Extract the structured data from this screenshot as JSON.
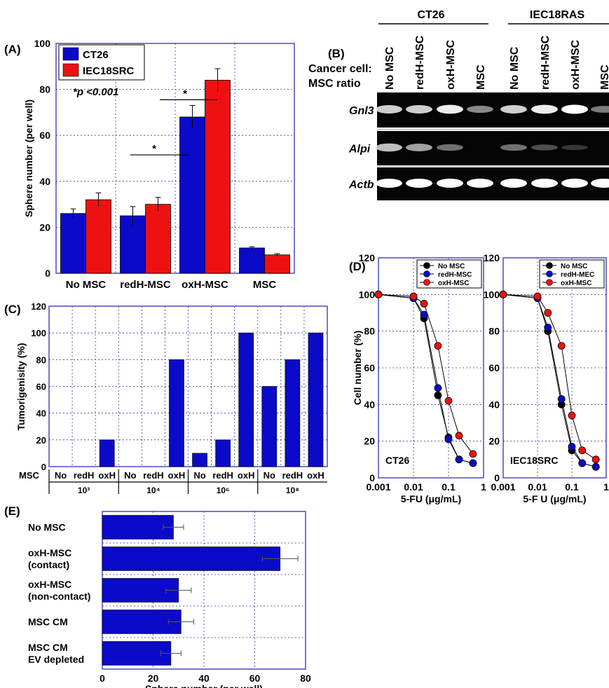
{
  "panels": {
    "a": "(A)",
    "b": "(B)",
    "c": "(C)",
    "d": "(D)",
    "e": "(E)"
  },
  "colors": {
    "blue": "#0A0AC8",
    "red": "#EE1111",
    "black": "#000000"
  },
  "chart_data": [
    {
      "id": "A",
      "type": "bar",
      "ylabel": "Sphere number (per well)",
      "ylim": [
        0,
        100
      ],
      "yticks": [
        0,
        20,
        40,
        60,
        80,
        100
      ],
      "categories": [
        "No MSC",
        "redH-MSC",
        "oxH-MSC",
        "MSC"
      ],
      "series": [
        {
          "name": "CT26",
          "values": [
            26,
            25,
            68,
            11
          ],
          "errors": [
            2,
            4,
            5,
            0.5
          ]
        },
        {
          "name": "IEC18SRC",
          "values": [
            32,
            30,
            84,
            8
          ],
          "errors": [
            3,
            3,
            5,
            0.5
          ]
        }
      ],
      "annotation_p": "*p <0.001",
      "sig_marks": [
        "*",
        "*"
      ],
      "grid": true,
      "legend": "top-left"
    },
    {
      "id": "B",
      "type": "table",
      "group_labels": [
        "CT26",
        "IEC18RAS"
      ],
      "lane_labels": [
        "No MSC",
        "redH-MSC",
        "oxH-MSC",
        "MSC",
        "No MSC",
        "redH-MSC",
        "oxH-MSC",
        "MSC"
      ],
      "row_header": [
        "Cancer cell:",
        "MSC ratio"
      ],
      "genes": [
        "Gnl3",
        "Alpi",
        "Actb"
      ],
      "band_intensity": [
        [
          0.85,
          0.85,
          0.95,
          0.6,
          0.85,
          0.95,
          1.0,
          0.55
        ],
        [
          0.8,
          0.7,
          0.5,
          0,
          0.5,
          0.35,
          0.2,
          0
        ],
        [
          1,
          1,
          1,
          1,
          1,
          1,
          1,
          1
        ]
      ]
    },
    {
      "id": "C",
      "type": "bar",
      "ylabel": "Tumorigenisity (%)",
      "ylim": [
        0,
        120
      ],
      "yticks": [
        0,
        20,
        40,
        60,
        80,
        100,
        120
      ],
      "row_label": "MSC",
      "group_labels": [
        "10³",
        "10⁴",
        "10⁶",
        "10⁸"
      ],
      "bar_labels": [
        "No",
        "redH",
        "oxH",
        "No",
        "redH",
        "oxH",
        "No",
        "redH",
        "oxH",
        "No",
        "redH",
        "oxH"
      ],
      "values": [
        0,
        0,
        20,
        0,
        0,
        80,
        10,
        20,
        100,
        60,
        80,
        100
      ],
      "grid": true
    },
    {
      "id": "D1",
      "type": "line",
      "xscale": "log",
      "xlabel": "5-FU (μg/mL)",
      "ylabel": "Cell number (%)",
      "xticks": [
        "0.001",
        "0.01",
        "0.1",
        "1"
      ],
      "ylim": [
        0,
        120
      ],
      "yticks": [
        0,
        20,
        40,
        60,
        80,
        100,
        120
      ],
      "panel_label": "CT26",
      "x": [
        0.001,
        0.01,
        0.02,
        0.05,
        0.1,
        0.2,
        0.5
      ],
      "series": [
        {
          "name": "No MSC",
          "color": "#000000",
          "values": [
            100,
            98,
            87,
            45,
            22,
            10,
            8
          ]
        },
        {
          "name": "redH-MSC",
          "color": "#0A0AC8",
          "values": [
            100,
            98,
            89,
            49,
            21,
            10,
            8
          ]
        },
        {
          "name": "oxH-MSC",
          "color": "#EE1111",
          "values": [
            100,
            99,
            95,
            72,
            42,
            23,
            13
          ]
        }
      ],
      "grid": true,
      "legend": "top-right"
    },
    {
      "id": "D2",
      "type": "line",
      "xscale": "log",
      "xlabel": "5-F U (μg/mL)",
      "xticks": [
        "0.001",
        "0.01",
        "0.1",
        "1"
      ],
      "ylim": [
        0,
        120
      ],
      "yticks": [
        0,
        20,
        40,
        60,
        80,
        100,
        120
      ],
      "panel_label": "IEC18SRC",
      "x": [
        0.001,
        0.01,
        0.02,
        0.05,
        0.1,
        0.2,
        0.5
      ],
      "series": [
        {
          "name": "No MSC",
          "color": "#000000",
          "values": [
            100,
            98,
            80,
            40,
            15,
            8,
            6
          ]
        },
        {
          "name": "redH-MEC",
          "color": "#0A0AC8",
          "values": [
            100,
            98,
            82,
            43,
            17,
            8,
            6
          ]
        },
        {
          "name": "oxH-MSC",
          "color": "#EE1111",
          "values": [
            100,
            99,
            90,
            72,
            34,
            15,
            10
          ]
        }
      ],
      "grid": true,
      "legend": "top-right"
    },
    {
      "id": "E",
      "type": "bar",
      "orientation": "horizontal",
      "xlabel": "Sphere number (per well)",
      "xlim": [
        0,
        80
      ],
      "xticks": [
        0,
        20,
        40,
        60,
        80
      ],
      "categories": [
        [
          "No MSC"
        ],
        [
          "oxH-MSC",
          "(contact)"
        ],
        [
          "oxH-MSC",
          "(non-contact)"
        ],
        [
          "MSC CM"
        ],
        [
          "MSC CM",
          "EV depleted"
        ]
      ],
      "values": [
        28,
        70,
        30,
        31,
        27
      ],
      "errors": [
        4,
        7,
        5,
        5,
        4
      ],
      "grid": true
    }
  ]
}
